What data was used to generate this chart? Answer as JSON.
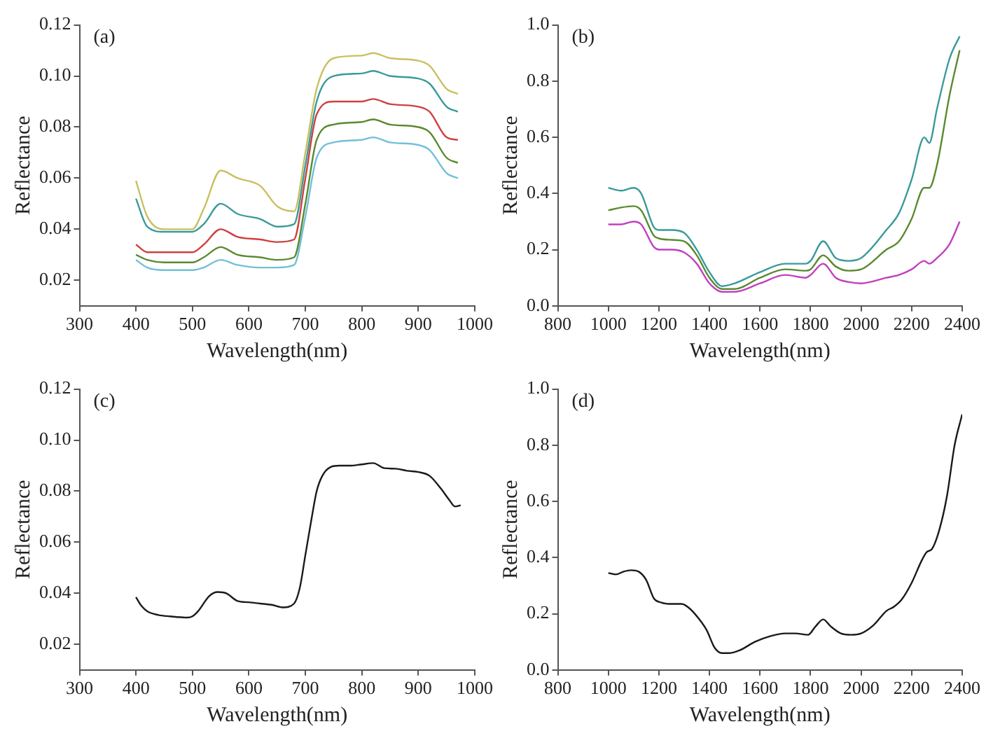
{
  "chart_data": [
    {
      "type": "line",
      "annotations": [
        "(a)"
      ],
      "xlabel": "Wavelength(nm)",
      "ylabel": "Reflectance",
      "grid": false,
      "legend": false,
      "x": [
        400,
        420,
        450,
        500,
        520,
        550,
        580,
        620,
        650,
        680,
        700,
        720,
        750,
        800,
        820,
        850,
        900,
        920,
        950,
        970
      ],
      "xlim": [
        300,
        1000
      ],
      "xticks": [
        300,
        400,
        500,
        600,
        700,
        800,
        900,
        1000
      ],
      "ylim": [
        0.01,
        0.12
      ],
      "yticks": [
        0.02,
        0.04,
        0.06,
        0.08,
        {
          "value": 0.1,
          "label": "0.10"
        },
        0.12
      ],
      "series": [
        {
          "color": "#c8c060",
          "values": [
            0.059,
            0.045,
            0.04,
            0.04,
            0.048,
            0.063,
            0.06,
            0.057,
            0.049,
            0.047,
            0.07,
            0.095,
            0.107,
            0.108,
            0.109,
            0.107,
            0.106,
            0.104,
            0.095,
            0.093
          ]
        },
        {
          "color": "#3a9a9a",
          "values": [
            0.052,
            0.041,
            0.039,
            0.039,
            0.042,
            0.05,
            0.046,
            0.044,
            0.041,
            0.042,
            0.065,
            0.09,
            0.1,
            0.101,
            0.102,
            0.1,
            0.099,
            0.097,
            0.088,
            0.086
          ]
        },
        {
          "color": "#d04040",
          "values": [
            0.034,
            0.031,
            0.031,
            0.031,
            0.034,
            0.04,
            0.037,
            0.036,
            0.035,
            0.036,
            0.06,
            0.085,
            0.09,
            0.09,
            0.091,
            0.089,
            0.088,
            0.086,
            0.076,
            0.075
          ]
        },
        {
          "color": "#5a8a30",
          "values": [
            0.03,
            0.028,
            0.027,
            0.027,
            0.029,
            0.033,
            0.03,
            0.029,
            0.028,
            0.029,
            0.05,
            0.075,
            0.081,
            0.082,
            0.083,
            0.081,
            0.08,
            0.078,
            0.068,
            0.066
          ]
        },
        {
          "color": "#70c0d8",
          "values": [
            0.028,
            0.025,
            0.024,
            0.024,
            0.025,
            0.028,
            0.026,
            0.025,
            0.025,
            0.026,
            0.045,
            0.068,
            0.074,
            0.075,
            0.076,
            0.074,
            0.073,
            0.071,
            0.062,
            0.06
          ]
        }
      ]
    },
    {
      "type": "line",
      "annotations": [
        "(b)"
      ],
      "xlabel": "Wavelength(nm)",
      "ylabel": "Reflectance",
      "grid": false,
      "legend": false,
      "x": [
        1000,
        1050,
        1100,
        1130,
        1180,
        1200,
        1250,
        1300,
        1350,
        1400,
        1450,
        1500,
        1600,
        1700,
        1780,
        1800,
        1850,
        1900,
        1950,
        2000,
        2100,
        2150,
        2200,
        2250,
        2270,
        2300,
        2350,
        2390
      ],
      "xlim": [
        800,
        2400
      ],
      "xticks": [
        800,
        1000,
        1200,
        1400,
        1600,
        1800,
        2000,
        2200,
        2400
      ],
      "ylim": [
        0,
        1
      ],
      "yticks": [
        {
          "value": 0,
          "label": "0.0"
        },
        0.2,
        0.4,
        0.6,
        0.8,
        {
          "value": 1,
          "label": "1.0"
        }
      ],
      "series": [
        {
          "color": "#3a9a9a",
          "values": [
            0.42,
            0.41,
            0.42,
            0.4,
            0.28,
            0.27,
            0.27,
            0.26,
            0.2,
            0.12,
            0.07,
            0.08,
            0.12,
            0.15,
            0.15,
            0.16,
            0.23,
            0.17,
            0.16,
            0.17,
            0.27,
            0.33,
            0.45,
            0.6,
            0.58,
            0.7,
            0.88,
            0.96
          ]
        },
        {
          "color": "#5a8a30",
          "values": [
            0.34,
            0.35,
            0.355,
            0.34,
            0.25,
            0.24,
            0.235,
            0.23,
            0.18,
            0.1,
            0.06,
            0.06,
            0.1,
            0.13,
            0.125,
            0.13,
            0.18,
            0.14,
            0.125,
            0.13,
            0.2,
            0.23,
            0.31,
            0.42,
            0.42,
            0.5,
            0.75,
            0.91
          ]
        },
        {
          "color": "#c040c0",
          "values": [
            0.29,
            0.29,
            0.3,
            0.29,
            0.21,
            0.2,
            0.2,
            0.19,
            0.15,
            0.08,
            0.05,
            0.05,
            0.08,
            0.11,
            0.1,
            0.11,
            0.15,
            0.1,
            0.085,
            0.08,
            0.1,
            0.11,
            0.13,
            0.16,
            0.15,
            0.17,
            0.22,
            0.3
          ]
        }
      ]
    },
    {
      "type": "line",
      "annotations": [
        "(c)"
      ],
      "xlabel": "Wavelength(nm)",
      "ylabel": "Reflectance",
      "grid": false,
      "legend": false,
      "x": [
        400,
        410,
        420,
        440,
        460,
        490,
        500,
        510,
        530,
        545,
        560,
        580,
        600,
        620,
        640,
        660,
        680,
        690,
        700,
        710,
        720,
        730,
        745,
        760,
        780,
        800,
        820,
        840,
        860,
        880,
        900,
        920,
        940,
        955,
        965,
        975
      ],
      "xlim": [
        300,
        1000
      ],
      "xticks": [
        300,
        400,
        500,
        600,
        700,
        800,
        900,
        1000
      ],
      "ylim": [
        0.01,
        0.12
      ],
      "yticks": [
        0.02,
        0.04,
        0.06,
        0.08,
        {
          "value": 0.1,
          "label": "0.10"
        },
        0.12
      ],
      "series": [
        {
          "color": "#1a1a1a",
          "values": [
            0.0385,
            0.035,
            0.033,
            0.0315,
            0.031,
            0.0305,
            0.031,
            0.033,
            0.039,
            0.0405,
            0.04,
            0.037,
            0.0365,
            0.036,
            0.0355,
            0.0345,
            0.036,
            0.042,
            0.055,
            0.068,
            0.08,
            0.086,
            0.0895,
            0.09,
            0.09,
            0.0905,
            0.091,
            0.089,
            0.0888,
            0.088,
            0.0875,
            0.086,
            0.081,
            0.0765,
            0.074,
            0.0745
          ]
        }
      ]
    },
    {
      "type": "line",
      "annotations": [
        "(d)"
      ],
      "xlabel": "Wavelength(nm)",
      "ylabel": "Reflectance",
      "grid": false,
      "legend": false,
      "x": [
        1000,
        1030,
        1060,
        1090,
        1120,
        1150,
        1180,
        1210,
        1250,
        1290,
        1320,
        1360,
        1390,
        1420,
        1450,
        1480,
        1520,
        1580,
        1640,
        1700,
        1740,
        1790,
        1820,
        1850,
        1880,
        1920,
        1960,
        2000,
        2050,
        2100,
        2130,
        2160,
        2200,
        2240,
        2260,
        2280,
        2310,
        2340,
        2370,
        2400
      ],
      "xlim": [
        800,
        2400
      ],
      "xticks": [
        800,
        1000,
        1200,
        1400,
        1600,
        1800,
        2000,
        2200,
        2400
      ],
      "ylim": [
        0,
        1
      ],
      "yticks": [
        {
          "value": 0,
          "label": "0.0"
        },
        0.2,
        0.4,
        0.6,
        0.8,
        {
          "value": 1,
          "label": "1.0"
        }
      ],
      "series": [
        {
          "color": "#1a1a1a",
          "values": [
            0.345,
            0.34,
            0.35,
            0.355,
            0.35,
            0.32,
            0.255,
            0.24,
            0.235,
            0.235,
            0.22,
            0.18,
            0.14,
            0.08,
            0.06,
            0.06,
            0.07,
            0.1,
            0.12,
            0.13,
            0.13,
            0.125,
            0.155,
            0.18,
            0.155,
            0.13,
            0.125,
            0.13,
            0.16,
            0.21,
            0.225,
            0.25,
            0.31,
            0.39,
            0.42,
            0.43,
            0.5,
            0.62,
            0.8,
            0.91
          ]
        }
      ]
    }
  ]
}
